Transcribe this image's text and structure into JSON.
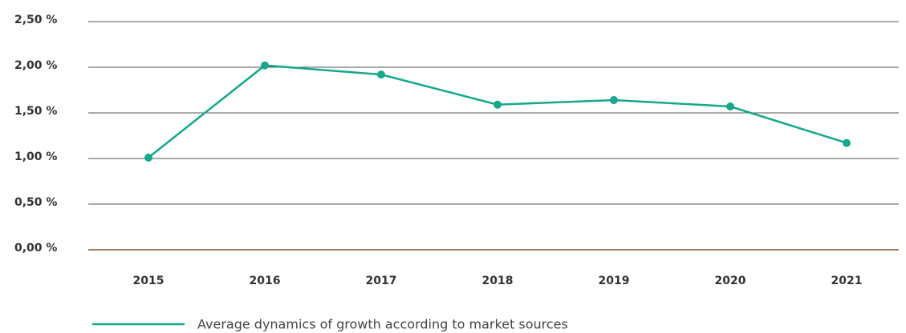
{
  "chart_data": {
    "type": "line",
    "categories": [
      "2015",
      "2016",
      "2017",
      "2018",
      "2019",
      "2020",
      "2021"
    ],
    "series": [
      {
        "name": "Average dynamics of growth according to market sources",
        "color": "#15a88a",
        "values": [
          1.01,
          2.02,
          1.92,
          1.59,
          1.64,
          1.57,
          1.17
        ]
      }
    ],
    "ylim": [
      0,
      2.5
    ],
    "yticks": [
      {
        "value": 0,
        "label": "0,00 %"
      },
      {
        "value": 0.5,
        "label": "0,50 %"
      },
      {
        "value": 1,
        "label": "1,00 %"
      },
      {
        "value": 1.5,
        "label": "1,50 %"
      },
      {
        "value": 2,
        "label": "2,00 %"
      },
      {
        "value": 2.5,
        "label": "2,50 %"
      }
    ],
    "grid": true,
    "grid_color": "#555555",
    "zero_line_color": "#a57c5b"
  }
}
